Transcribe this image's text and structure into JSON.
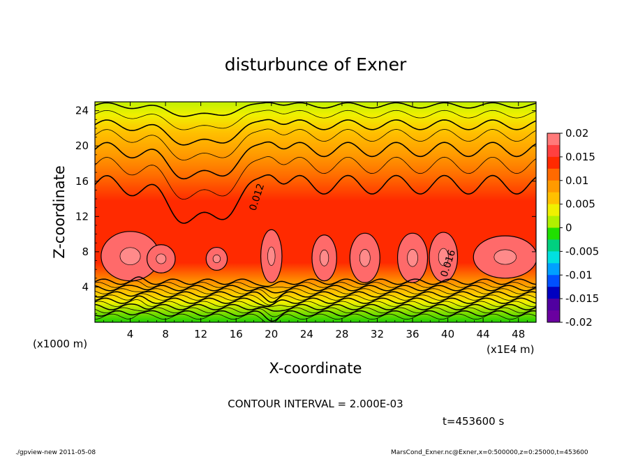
{
  "chart_data": {
    "type": "heatmap",
    "title": "disturbunce of Exner",
    "xlabel": "X-coordinate",
    "ylabel": "Z-coordinate",
    "x_unit_label": "(x1000 m)",
    "x_scale_label": "(x1E4 m)",
    "xlim": [
      0,
      50
    ],
    "ylim": [
      0,
      25
    ],
    "x_ticks": [
      "4",
      "8",
      "12",
      "16",
      "20",
      "24",
      "28",
      "32",
      "36",
      "40",
      "44",
      "48"
    ],
    "x_tick_values": [
      4,
      8,
      12,
      16,
      20,
      24,
      28,
      32,
      36,
      40,
      44,
      48
    ],
    "y_ticks": [
      "4",
      "8",
      "12",
      "16",
      "20",
      "24"
    ],
    "y_tick_values": [
      4,
      8,
      12,
      16,
      20,
      24
    ],
    "contour_interval_text": "CONTOUR INTERVAL = 2.000E-03",
    "contour_labels": [
      "0.012",
      "0.016"
    ],
    "time_label": "t=453600 s",
    "colorbar": {
      "labels": [
        "0.02",
        "0.015",
        "0.01",
        "0.005",
        "0",
        "-0.005",
        "-0.01",
        "-0.015",
        "-0.02"
      ],
      "values": [
        0.02,
        0.015,
        0.01,
        0.005,
        0,
        -0.005,
        -0.01,
        -0.015,
        -0.02
      ],
      "colors": [
        "#ff7a7a",
        "#ff4040",
        "#ff2a00",
        "#ff6a00",
        "#ff9a00",
        "#ffc000",
        "#f0f000",
        "#b0f000",
        "#20e000",
        "#00d080",
        "#00e0e0",
        "#00a0ff",
        "#0050ff",
        "#0000c0",
        "#5000a0",
        "#6a00a0"
      ]
    },
    "footer_left": "./gpview-new  2011-05-08",
    "footer_right": "MarsCond_Exner.nc@Exner,x=0:500000,z=0:25000,t=453600"
  }
}
